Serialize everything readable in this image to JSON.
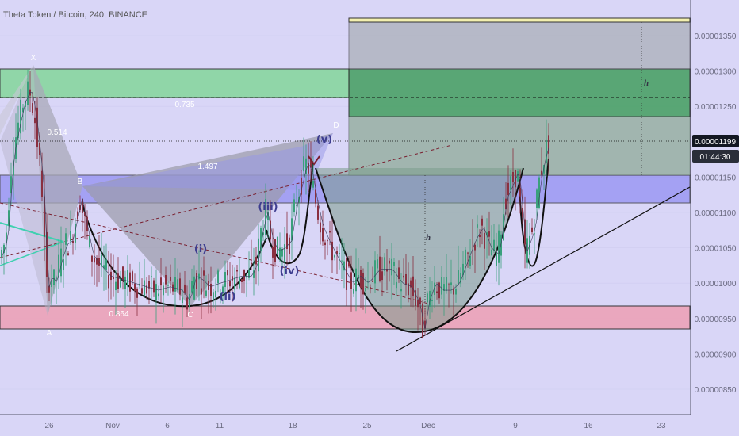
{
  "header": {
    "title": "Theta Token / Bitcoin, 240, BINANCE"
  },
  "colors": {
    "background": "#d9d6f7",
    "bull": "#3aa07c",
    "bear": "#8a3040",
    "green_zone": "#7fd49a",
    "red_zone": "#e9a0b5",
    "blue_zone": "#8f8bf2",
    "price_badge": "#131722",
    "timer_badge": "#2a2e39"
  },
  "chart_data": {
    "type": "candlestick",
    "title": "Theta Token / Bitcoin, 240, BINANCE",
    "xlabel": "",
    "ylabel": "",
    "y_range": [
      8.1e-06,
      1.4e-05
    ],
    "y_ticks": [
      "0.00001350",
      "0.00001300",
      "0.00001250",
      "0.00001150",
      "0.00001100",
      "0.00001050",
      "0.00001000",
      "0.00000950",
      "0.00000900",
      "0.00000850"
    ],
    "x_ticks": [
      "26",
      "Nov",
      "6",
      "11",
      "18",
      "25",
      "Dec",
      "9",
      "16",
      "23"
    ],
    "current_price": "0.00001199",
    "countdown": "01:44:30",
    "price_path": [
      [
        0,
        1.03e-05
      ],
      [
        10,
        1.06e-05
      ],
      [
        18,
        1.18e-05
      ],
      [
        25,
        1.22e-05
      ],
      [
        32,
        1.255e-05
      ],
      [
        40,
        1.275e-05
      ],
      [
        46,
        1.24e-05
      ],
      [
        52,
        1.18e-05
      ],
      [
        57,
        1.12e-05
      ],
      [
        61,
        9.9e-06
      ],
      [
        66,
        1.01e-05
      ],
      [
        72,
        1e-05
      ],
      [
        78,
        1.03e-05
      ],
      [
        85,
        1.055e-05
      ],
      [
        92,
        1.06e-05
      ],
      [
        98,
        1.09e-05
      ],
      [
        104,
        1.12e-05
      ],
      [
        110,
        1.085e-05
      ],
      [
        118,
        1.04e-05
      ],
      [
        128,
        1.025e-05
      ],
      [
        140,
        1.01e-05
      ],
      [
        155,
        1.005e-05
      ],
      [
        170,
        1e-05
      ],
      [
        185,
        9.95e-06
      ],
      [
        200,
        9.9e-06
      ],
      [
        215,
        9.95e-06
      ],
      [
        230,
        9.9e-06
      ],
      [
        240,
        9.75e-06
      ],
      [
        248,
        1.01e-05
      ],
      [
        256,
        1.005e-05
      ],
      [
        265,
        9.95e-06
      ],
      [
        278,
        1e-05
      ],
      [
        292,
        1.005e-05
      ],
      [
        305,
        1.01e-05
      ],
      [
        318,
        1.01e-05
      ],
      [
        326,
        1.03e-05
      ],
      [
        333,
        1.08e-05
      ],
      [
        338,
        1.1e-05
      ],
      [
        345,
        1.06e-05
      ],
      [
        352,
        1.045e-05
      ],
      [
        360,
        1.05e-05
      ],
      [
        368,
        1.06e-05
      ],
      [
        375,
        1.11e-05
      ],
      [
        382,
        1.14e-05
      ],
      [
        388,
        1.17e-05
      ],
      [
        394,
        1.16e-05
      ],
      [
        400,
        1.12e-05
      ],
      [
        408,
        1.08e-05
      ],
      [
        416,
        1.06e-05
      ],
      [
        425,
        1.04e-05
      ],
      [
        435,
        1.02e-05
      ],
      [
        445,
        1e-05
      ],
      [
        455,
        1.01e-05
      ],
      [
        465,
        1e-05
      ],
      [
        480,
        1.02e-05
      ],
      [
        495,
        1.02e-05
      ],
      [
        508,
        1e-05
      ],
      [
        520,
        9.95e-06
      ],
      [
        530,
        9.7e-06
      ],
      [
        536,
        9.35e-06
      ],
      [
        542,
        9.75e-06
      ],
      [
        550,
        1e-05
      ],
      [
        560,
        9.9e-06
      ],
      [
        570,
        9.9e-06
      ],
      [
        580,
        1e-05
      ],
      [
        590,
        1.03e-05
      ],
      [
        600,
        1.06e-05
      ],
      [
        610,
        1.08e-05
      ],
      [
        620,
        1.05e-05
      ],
      [
        630,
        1.04e-05
      ],
      [
        640,
        1.12e-05
      ],
      [
        648,
        1.14e-05
      ],
      [
        655,
        1.16e-05
      ],
      [
        660,
        1.1e-05
      ],
      [
        665,
        1.045e-05
      ],
      [
        670,
        1.06e-05
      ],
      [
        676,
        1.08e-05
      ],
      [
        682,
        1.14e-05
      ],
      [
        688,
        1.175e-05
      ],
      [
        694,
        1.199e-05
      ]
    ],
    "levels": [
      "0.00001370",
      "0.00001300",
      "0.00001262",
      "0.00001200",
      "0.00001152",
      "0.00001110",
      "0.00000967",
      "0.00000933"
    ],
    "fib_labels": [
      "0.735",
      "0.514",
      "1.497",
      "0.864"
    ],
    "pattern_points": [
      "X",
      "A",
      "B",
      "C",
      "D"
    ],
    "wave_labels": [
      "(i)",
      "(ii)",
      "(iii)",
      "(iv)",
      "(v)"
    ],
    "measure_labels": [
      "h",
      "h"
    ]
  }
}
